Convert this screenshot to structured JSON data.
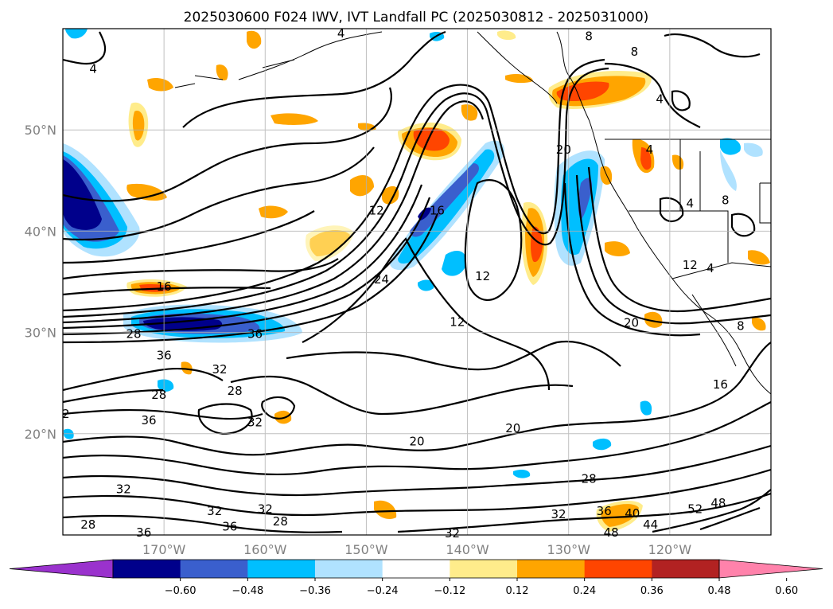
{
  "chart_data": {
    "type": "contour_map",
    "title": "2025030600 F024 IWV, IVT Landfall PC (2025030812 - 2025031000)",
    "lon_range": [
      -180,
      -110
    ],
    "lat_range": [
      10,
      60
    ],
    "lon_ticks": [
      {
        "lon": -170,
        "label": "170°W"
      },
      {
        "lon": -160,
        "label": "160°W"
      },
      {
        "lon": -150,
        "label": "150°W"
      },
      {
        "lon": -140,
        "label": "140°W"
      },
      {
        "lon": -130,
        "label": "130°W"
      },
      {
        "lon": -120,
        "label": "120°W"
      }
    ],
    "lat_ticks": [
      {
        "lat": 50,
        "label": "50°N"
      },
      {
        "lat": 40,
        "label": "40°N"
      },
      {
        "lat": 30,
        "label": "30°N"
      },
      {
        "lat": 20,
        "label": "20°N"
      }
    ],
    "grid": true,
    "colorbar": {
      "orientation": "horizontal",
      "extend": "both",
      "colors": [
        "#9a32cd",
        "#00008b",
        "#3a5fcd",
        "#00bfff",
        "#b0e2ff",
        "#ffffff",
        "#ffec8b",
        "#ffa500",
        "#ff4500",
        "#b22222",
        "#ff82ab"
      ],
      "ticks": [
        "−0.60",
        "−0.48",
        "−0.36",
        "−0.24",
        "−0.12",
        "0.12",
        "0.24",
        "0.36",
        "0.48",
        "0.60"
      ]
    },
    "contour_labels": [
      {
        "text": "4",
        "lon": -177,
        "lat": 56
      },
      {
        "text": "4",
        "lon": -152.5,
        "lat": 59.5
      },
      {
        "text": "8",
        "lon": -128,
        "lat": 59.2
      },
      {
        "text": "8",
        "lon": -123.5,
        "lat": 57.7
      },
      {
        "text": "4",
        "lon": -121,
        "lat": 53
      },
      {
        "text": "4",
        "lon": -122,
        "lat": 48
      },
      {
        "text": "8",
        "lon": -114.5,
        "lat": 43
      },
      {
        "text": "4",
        "lon": -118,
        "lat": 42.7
      },
      {
        "text": "12",
        "lon": -118,
        "lat": 36.6
      },
      {
        "text": "4",
        "lon": -116,
        "lat": 36.3
      },
      {
        "text": "20",
        "lon": -130.5,
        "lat": 48
      },
      {
        "text": "12",
        "lon": -149,
        "lat": 42
      },
      {
        "text": "16",
        "lon": -143,
        "lat": 42
      },
      {
        "text": "12",
        "lon": -138.5,
        "lat": 35.5
      },
      {
        "text": "24",
        "lon": -148.5,
        "lat": 35.2
      },
      {
        "text": "16",
        "lon": -170,
        "lat": 34.5
      },
      {
        "text": "28",
        "lon": -173,
        "lat": 29.8
      },
      {
        "text": "36",
        "lon": -170,
        "lat": 27.7
      },
      {
        "text": "36",
        "lon": -161,
        "lat": 29.8
      },
      {
        "text": "32",
        "lon": -164.5,
        "lat": 26.3
      },
      {
        "text": "28",
        "lon": -163,
        "lat": 24.2
      },
      {
        "text": "28",
        "lon": -170.5,
        "lat": 23.8
      },
      {
        "text": "36",
        "lon": -171.5,
        "lat": 21.3
      },
      {
        "text": "32",
        "lon": -161,
        "lat": 21.1
      },
      {
        "text": "32",
        "lon": -174,
        "lat": 14.5
      },
      {
        "text": "32",
        "lon": -165,
        "lat": 12.3
      },
      {
        "text": "36",
        "lon": -163.5,
        "lat": 10.8
      },
      {
        "text": "28",
        "lon": -177.5,
        "lat": 11
      },
      {
        "text": "28",
        "lon": -158.5,
        "lat": 11.3
      },
      {
        "text": "32",
        "lon": -160,
        "lat": 12.5
      },
      {
        "text": "36",
        "lon": -172,
        "lat": 10.2
      },
      {
        "text": "12",
        "lon": -141,
        "lat": 31
      },
      {
        "text": "20",
        "lon": -145,
        "lat": 19.2
      },
      {
        "text": "20",
        "lon": -135.5,
        "lat": 20.5
      },
      {
        "text": "28",
        "lon": -128,
        "lat": 15.5
      },
      {
        "text": "32",
        "lon": -131,
        "lat": 12
      },
      {
        "text": "36",
        "lon": -126.5,
        "lat": 12.3
      },
      {
        "text": "40",
        "lon": -123.7,
        "lat": 12.1
      },
      {
        "text": "44",
        "lon": -121.9,
        "lat": 11
      },
      {
        "text": "48",
        "lon": -125.8,
        "lat": 10.2
      },
      {
        "text": "52",
        "lon": -117.5,
        "lat": 12.5
      },
      {
        "text": "48",
        "lon": -115.2,
        "lat": 13.1
      },
      {
        "text": "16",
        "lon": -115,
        "lat": 24.8
      },
      {
        "text": "20",
        "lon": -123.8,
        "lat": 30.9
      },
      {
        "text": "8",
        "lon": -113,
        "lat": 30.6
      },
      {
        "text": "32",
        "lon": -141.5,
        "lat": 10.1
      },
      {
        "text": "2",
        "lon": -179.7,
        "lat": 21.9
      }
    ]
  }
}
